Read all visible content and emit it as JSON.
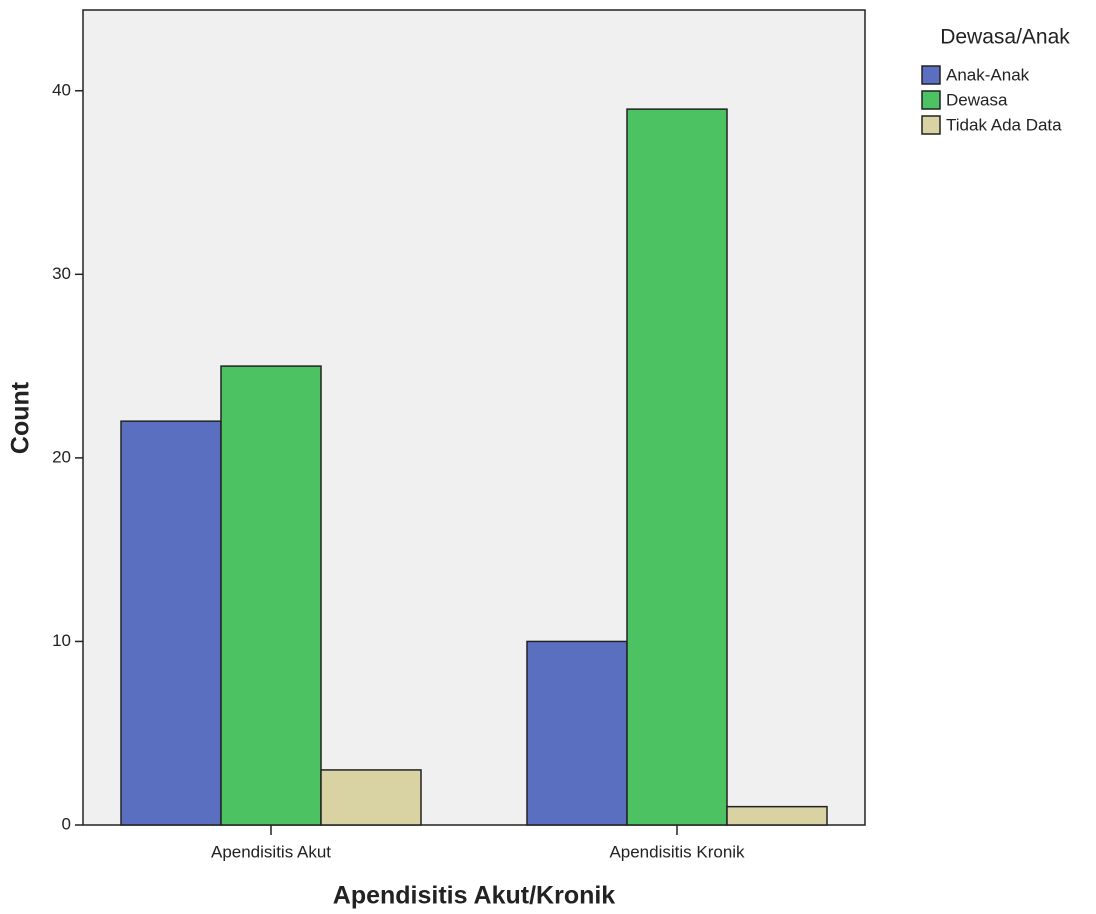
{
  "chart_data": {
    "type": "bar",
    "x_label": "Apendisitis Akut/Kronik",
    "y_label": "Count",
    "legend_title": "Dewasa/Anak",
    "legend_position": "right",
    "categories": [
      "Apendisitis Akut",
      "Apendisitis Kronik"
    ],
    "series": [
      {
        "name": "Anak-Anak",
        "color": "#5b6fc0",
        "values": [
          22,
          10
        ]
      },
      {
        "name": "Dewasa",
        "color": "#4cc262",
        "values": [
          25,
          39
        ]
      },
      {
        "name": "Tidak Ada Data",
        "color": "#d9d3a4",
        "values": [
          3,
          1
        ]
      }
    ],
    "ylim": [
      0,
      44.4
    ],
    "yticks": [
      0,
      10,
      20,
      30,
      40
    ],
    "grid": false,
    "background": "#f0f0f0"
  }
}
